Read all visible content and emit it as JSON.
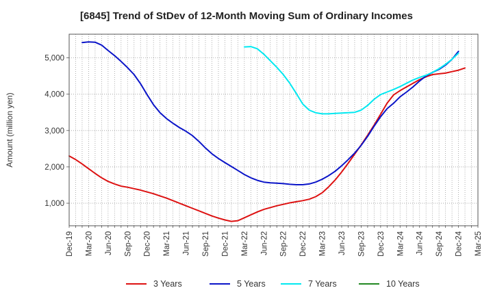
{
  "chart_data": {
    "type": "line",
    "title": "[6845]  Trend of StDev of 12-Month Moving Sum of Ordinary Incomes",
    "xlabel": "",
    "ylabel": "Amount (million yen)",
    "x_ticks": [
      "Dec-19",
      "Mar-20",
      "Jun-20",
      "Sep-20",
      "Dec-20",
      "Mar-21",
      "Jun-21",
      "Sep-21",
      "Dec-21",
      "Mar-22",
      "Jun-22",
      "Sep-22",
      "Dec-22",
      "Mar-23",
      "Jun-23",
      "Sep-23",
      "Dec-23",
      "Mar-24",
      "Jun-24",
      "Sep-24",
      "Dec-24",
      "Mar-25"
    ],
    "y_ticks": [
      "1,000",
      "2,000",
      "3,000",
      "4,000",
      "5,000"
    ],
    "y_tick_values": [
      1000,
      2000,
      3000,
      4000,
      5000
    ],
    "ylim": [
      380,
      5650
    ],
    "grid": true,
    "legend_position": "bottom",
    "series": [
      {
        "name": "3 Years",
        "color": "#dd1111",
        "start": "Dec-19",
        "values": [
          2300,
          2200,
          2080,
          1950,
          1820,
          1700,
          1600,
          1530,
          1470,
          1440,
          1400,
          1360,
          1310,
          1260,
          1200,
          1140,
          1070,
          1000,
          930,
          860,
          790,
          720,
          650,
          590,
          540,
          500,
          520,
          600,
          680,
          760,
          830,
          880,
          930,
          970,
          1010,
          1040,
          1070,
          1110,
          1180,
          1290,
          1450,
          1640,
          1860,
          2100,
          2350,
          2600,
          2870,
          3150,
          3450,
          3750,
          3980,
          4100,
          4200,
          4300,
          4400,
          4480,
          4540,
          4560,
          4580,
          4620,
          4660,
          4720
        ]
      },
      {
        "name": "5 Years",
        "color": "#0a14c8",
        "start": "Dec-19",
        "values": [
          null,
          null,
          5420,
          5440,
          5430,
          5350,
          5200,
          5060,
          4900,
          4730,
          4540,
          4290,
          3990,
          3710,
          3490,
          3330,
          3200,
          3080,
          2980,
          2860,
          2700,
          2520,
          2360,
          2230,
          2120,
          2010,
          1900,
          1790,
          1700,
          1630,
          1580,
          1560,
          1550,
          1540,
          1520,
          1510,
          1510,
          1530,
          1580,
          1660,
          1760,
          1880,
          2030,
          2200,
          2380,
          2590,
          2840,
          3120,
          3380,
          3600,
          3750,
          3930,
          4060,
          4200,
          4360,
          4500,
          4600,
          4680,
          4800,
          4960,
          5180
        ]
      },
      {
        "name": "7 Years",
        "color": "#00e8f0",
        "start": "Dec-19",
        "values": [
          null,
          null,
          null,
          null,
          null,
          null,
          null,
          null,
          null,
          null,
          null,
          null,
          null,
          null,
          null,
          null,
          null,
          null,
          null,
          null,
          null,
          null,
          null,
          null,
          null,
          null,
          null,
          5300,
          5310,
          5250,
          5100,
          4920,
          4740,
          4540,
          4300,
          4020,
          3730,
          3560,
          3490,
          3460,
          3460,
          3470,
          3480,
          3490,
          3500,
          3560,
          3690,
          3860,
          3990,
          4060,
          4130,
          4210,
          4300,
          4390,
          4460,
          4520,
          4600,
          4700,
          4820,
          4960,
          5130
        ]
      },
      {
        "name": "10 Years",
        "color": "#228822",
        "start": "Dec-19",
        "values": []
      }
    ]
  }
}
